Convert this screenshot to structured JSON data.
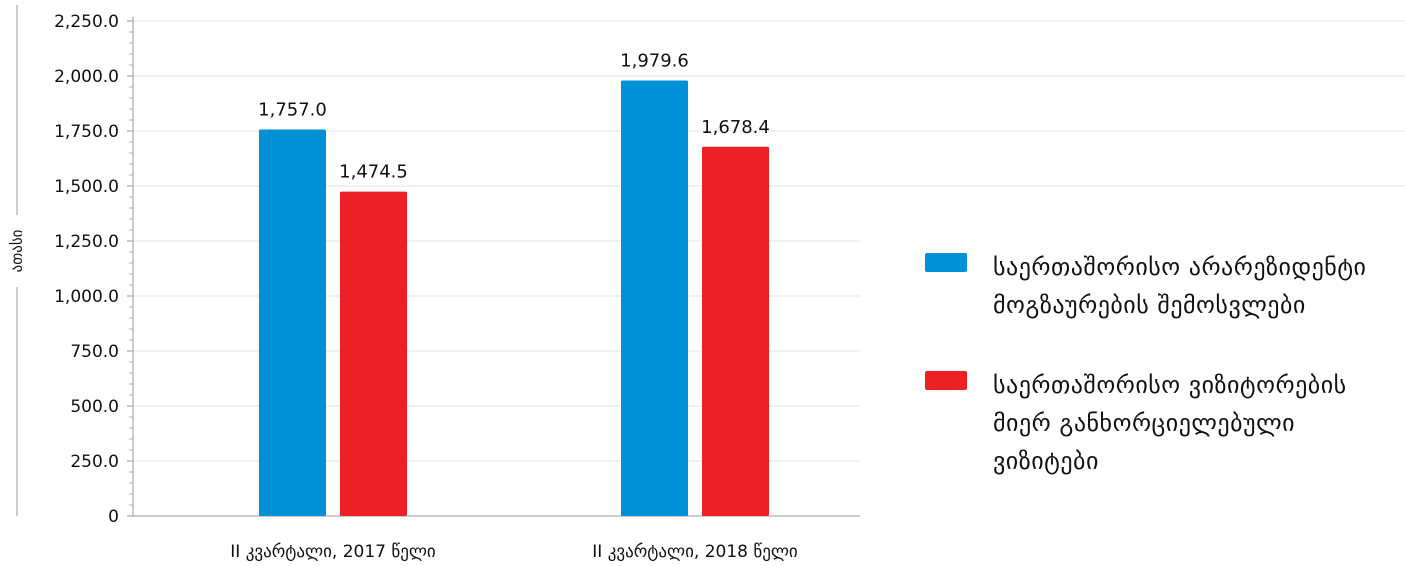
{
  "chart_data": {
    "type": "bar",
    "title": "",
    "xlabel": "",
    "ylabel": "ათასი",
    "ylim": [
      0,
      2250
    ],
    "yticks": [
      0,
      250,
      500,
      750,
      1000,
      1250,
      1500,
      1750,
      2000,
      2250
    ],
    "ytick_labels": [
      "0",
      "250.0",
      "500.0",
      "750.0",
      "1,000.0",
      "1,250.0",
      "1,500.0",
      "1,750.0",
      "2,000.0",
      "2,250.0"
    ],
    "grid": true,
    "legend_position": "right",
    "categories": [
      "II კვარტალი, 2017 წელი",
      "II კვარტალი, 2018 წელი"
    ],
    "series": [
      {
        "name": "საერთაშორისო არარეზიდენტი მოგზაურების შემოსვლები",
        "color": "#0090D5",
        "values": [
          1757.0,
          1979.6
        ],
        "labels": [
          "1,757.0",
          "1,979.6"
        ]
      },
      {
        "name": "საერთაშორისო ვიზიტორების მიერ განხორციელებული ვიზიტები",
        "color": "#EE2027",
        "values": [
          1474.5,
          1678.4
        ],
        "labels": [
          "1,474.5",
          "1,678.4"
        ]
      }
    ]
  }
}
